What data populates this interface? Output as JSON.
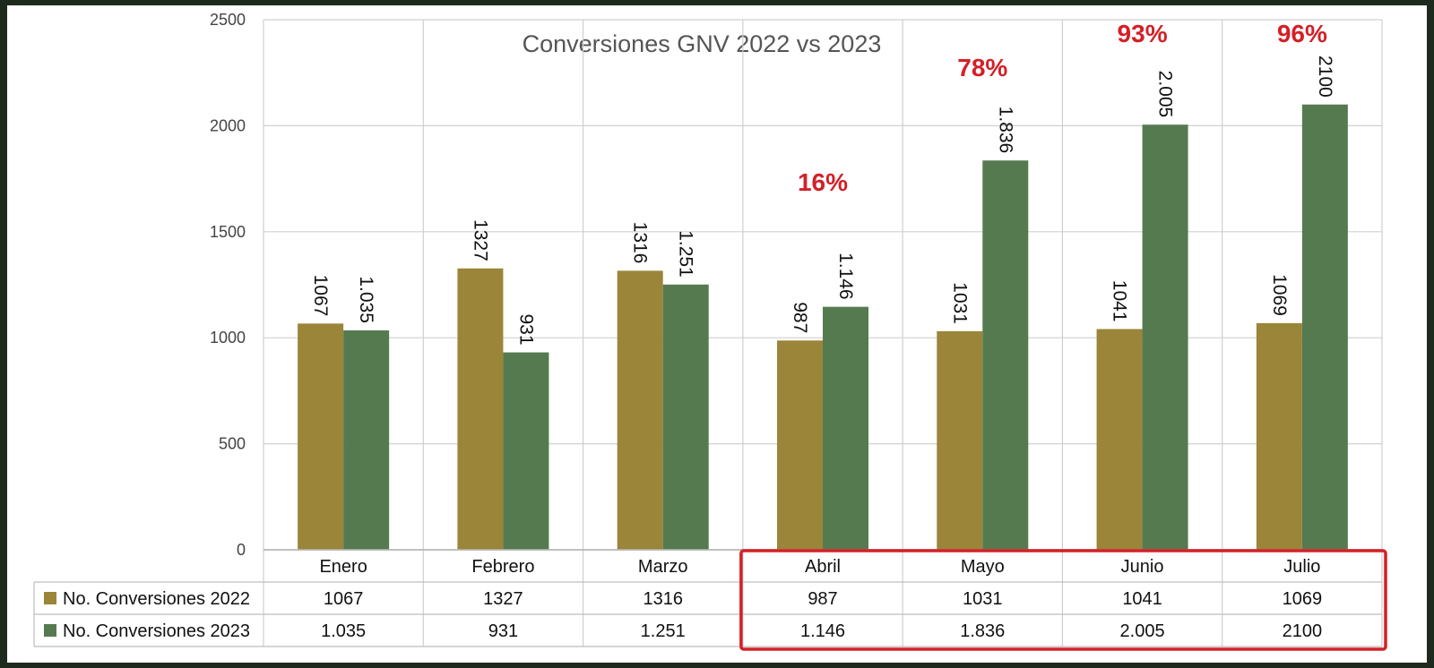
{
  "chart_data": {
    "type": "bar",
    "title": "Conversiones GNV 2022 vs 2023",
    "xlabel": "",
    "ylabel": "",
    "ylim": [
      0,
      2500
    ],
    "yticks": [
      "0",
      "500",
      "1000",
      "1500",
      "2000",
      "2500"
    ],
    "grid": true,
    "legend_placement": "data-table-left",
    "categories": [
      "Enero",
      "Febrero",
      "Marzo",
      "Abril",
      "Mayo",
      "Junio",
      "Julio"
    ],
    "series": [
      {
        "name": "No. Conversiones 2022",
        "color": "#9a8538",
        "values": [
          1067,
          1327,
          1316,
          987,
          1031,
          1041,
          1069
        ],
        "labels": [
          "1067",
          "1327",
          "1316",
          "987",
          "1031",
          "1041",
          "1069"
        ]
      },
      {
        "name": "No. Conversiones 2023",
        "color": "#567a50",
        "values": [
          1035,
          931,
          1251,
          1146,
          1836,
          2005,
          2100
        ],
        "labels": [
          "1.035",
          "931",
          "1.251",
          "1.146",
          "1.836",
          "2.005",
          "2100"
        ]
      }
    ],
    "annotations": [
      {
        "category": "Abril",
        "text": "16%"
      },
      {
        "category": "Mayo",
        "text": "78%"
      },
      {
        "category": "Junio",
        "text": "93%"
      },
      {
        "category": "Julio",
        "text": "96%"
      }
    ],
    "annotation_color": "#d32027",
    "highlight": {
      "from": "Abril",
      "to": "Julio",
      "color": "#d32027"
    }
  }
}
